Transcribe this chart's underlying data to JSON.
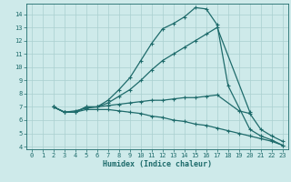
{
  "xlabel": "Humidex (Indice chaleur)",
  "ylabel": "",
  "bg_color": "#ceeaea",
  "grid_color": "#aacfcf",
  "line_color": "#1e6b6b",
  "xlim": [
    -0.5,
    23.5
  ],
  "ylim": [
    3.8,
    14.8
  ],
  "yticks": [
    4,
    5,
    6,
    7,
    8,
    9,
    10,
    11,
    12,
    13,
    14
  ],
  "xticks": [
    0,
    1,
    2,
    3,
    4,
    5,
    6,
    7,
    8,
    9,
    10,
    11,
    12,
    13,
    14,
    15,
    16,
    17,
    18,
    19,
    20,
    21,
    22,
    23
  ],
  "lines": [
    {
      "x": [
        2,
        3,
        4,
        5,
        6,
        7,
        8,
        9,
        10,
        11,
        12,
        13,
        14,
        15,
        16,
        17,
        18,
        20,
        21,
        22,
        23
      ],
      "y": [
        7.0,
        6.6,
        6.6,
        7.0,
        7.0,
        7.5,
        8.3,
        9.2,
        10.5,
        11.8,
        12.9,
        13.3,
        13.8,
        14.5,
        14.4,
        13.2,
        8.6,
        5.3,
        4.8,
        4.5,
        4.1
      ]
    },
    {
      "x": [
        2,
        3,
        4,
        5,
        6,
        7,
        8,
        9,
        10,
        11,
        12,
        13,
        14,
        15,
        16,
        17,
        20
      ],
      "y": [
        7.0,
        6.6,
        6.6,
        7.0,
        7.0,
        7.3,
        7.8,
        8.3,
        9.0,
        9.8,
        10.5,
        11.0,
        11.5,
        12.0,
        12.5,
        13.0,
        6.6
      ]
    },
    {
      "x": [
        2,
        3,
        4,
        5,
        6,
        7,
        8,
        9,
        10,
        11,
        12,
        13,
        14,
        15,
        16,
        17,
        19,
        20,
        21,
        22,
        23
      ],
      "y": [
        7.0,
        6.6,
        6.7,
        6.9,
        7.0,
        7.1,
        7.2,
        7.3,
        7.4,
        7.5,
        7.5,
        7.6,
        7.7,
        7.7,
        7.8,
        7.9,
        6.7,
        6.5,
        5.3,
        4.8,
        4.4
      ]
    },
    {
      "x": [
        2,
        3,
        4,
        5,
        6,
        7,
        8,
        9,
        10,
        11,
        12,
        13,
        14,
        15,
        16,
        17,
        18,
        19,
        20,
        21,
        22,
        23
      ],
      "y": [
        7.0,
        6.6,
        6.6,
        6.8,
        6.8,
        6.8,
        6.7,
        6.6,
        6.5,
        6.3,
        6.2,
        6.0,
        5.9,
        5.7,
        5.6,
        5.4,
        5.2,
        5.0,
        4.8,
        4.6,
        4.4,
        4.1
      ]
    }
  ]
}
